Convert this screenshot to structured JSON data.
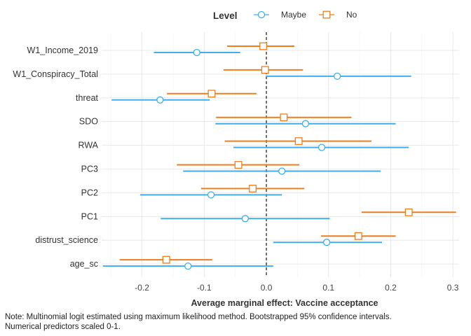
{
  "chart_data": {
    "type": "dot-errorbar",
    "title": "",
    "xlabel": "Average marginal effect: Vaccine acceptance",
    "ylabel": "",
    "xlim": [
      -0.265,
      0.31
    ],
    "xticks": [
      -0.2,
      -0.1,
      0.0,
      0.1,
      0.2,
      0.3
    ],
    "xtick_labels": [
      "-0.2",
      "-0.1",
      "0.0",
      "0.1",
      "0.2",
      "0.3"
    ],
    "reference_line": 0.0,
    "grid": true,
    "legend": {
      "title": "Level",
      "position": "top"
    },
    "categories": [
      "W1_Income_2019",
      "W1_Conspiracy_Total",
      "threat",
      "SDO",
      "RWA",
      "PC3",
      "PC2",
      "PC1",
      "distrust_science",
      "age_sc"
    ],
    "series": [
      {
        "name": "Maybe",
        "color": "#41ade9",
        "marker": "circle",
        "estimate": [
          -0.112,
          0.114,
          -0.171,
          0.063,
          0.089,
          0.025,
          -0.089,
          -0.034,
          0.097,
          -0.126
        ],
        "lower": [
          -0.181,
          -0.001,
          -0.249,
          -0.082,
          -0.053,
          -0.134,
          -0.203,
          -0.17,
          0.011,
          -0.263
        ],
        "upper": [
          -0.042,
          0.233,
          -0.091,
          0.208,
          0.229,
          0.184,
          0.025,
          0.102,
          0.186,
          0.011
        ]
      },
      {
        "name": "No",
        "color": "#ef7d1b",
        "marker": "square",
        "estimate": [
          -0.005,
          -0.002,
          -0.088,
          0.028,
          0.052,
          -0.045,
          -0.022,
          0.229,
          0.148,
          -0.161
        ],
        "lower": [
          -0.063,
          -0.069,
          -0.16,
          -0.081,
          -0.067,
          -0.144,
          -0.105,
          0.153,
          0.088,
          -0.236
        ],
        "upper": [
          0.045,
          0.059,
          -0.016,
          0.137,
          0.169,
          0.053,
          0.061,
          0.305,
          0.208,
          -0.087
        ]
      }
    ]
  },
  "note": {
    "line1": "Note: Multinomial logit estimated using maximum likelihood method.  Bootstrapped 95% confidence intervals.",
    "line2": "Numerical predictors scaled 0-1."
  }
}
